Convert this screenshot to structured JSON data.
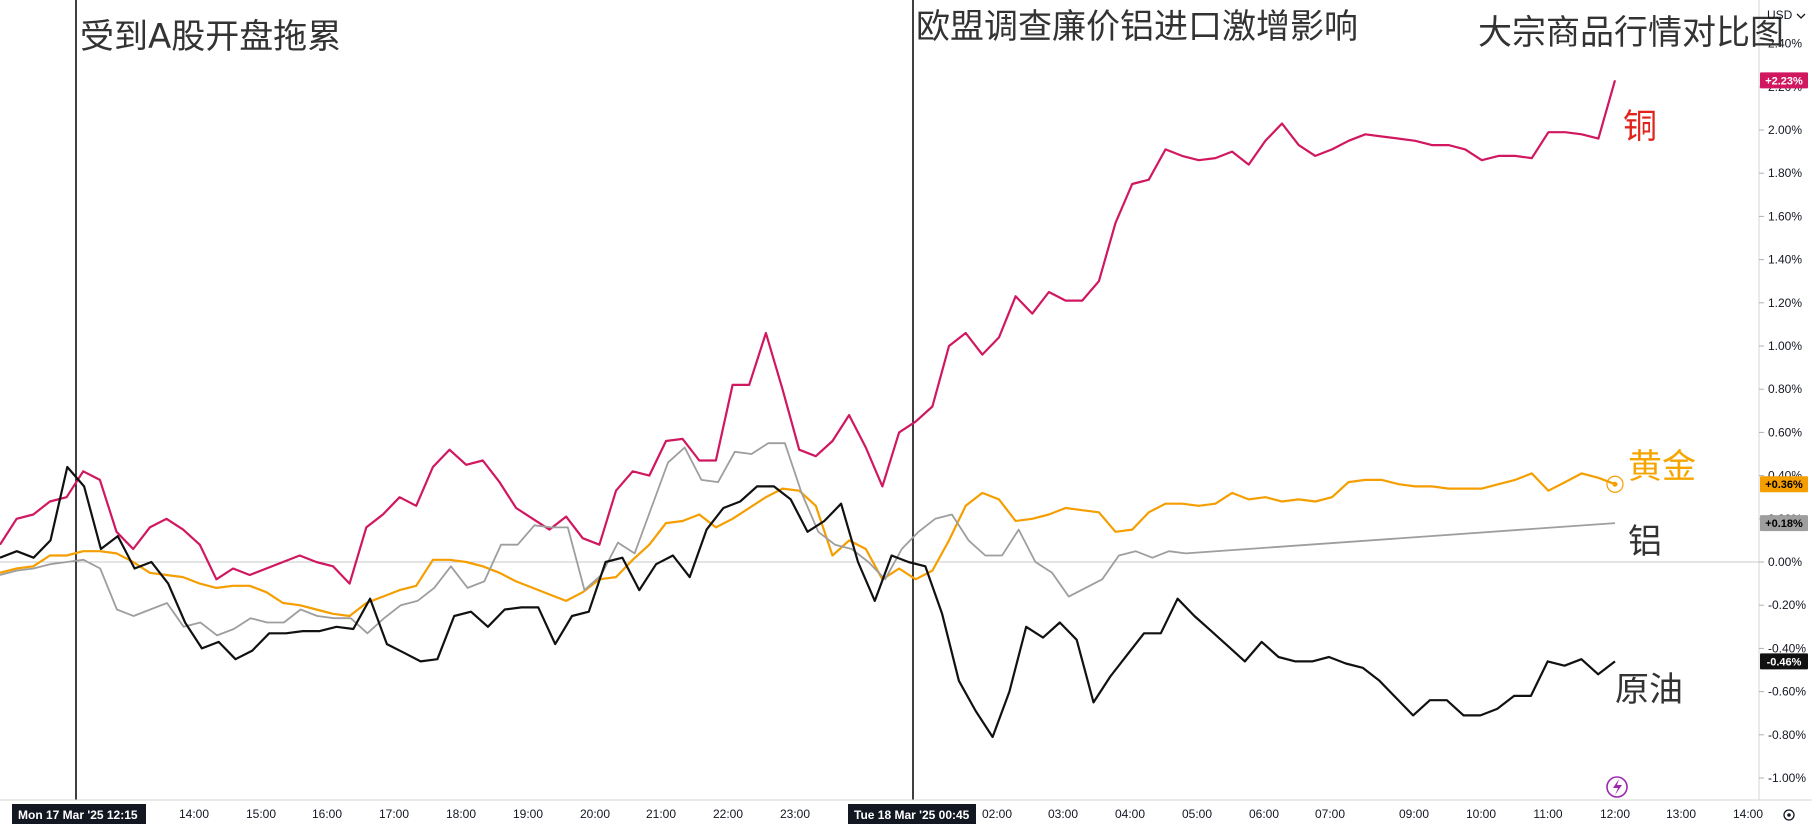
{
  "chart_data": {
    "type": "line",
    "title": "大宗商品行情对比图",
    "currency": "USD",
    "ylabel": "",
    "xlabel": "",
    "ylim": [
      -1.1,
      2.55
    ],
    "y_ticks": [
      "2.40%",
      "2.20%",
      "2.00%",
      "1.80%",
      "1.60%",
      "1.40%",
      "1.20%",
      "1.00%",
      "0.80%",
      "0.60%",
      "0.40%",
      "0.20%",
      "0.00%",
      "-0.20%",
      "-0.40%",
      "-0.60%",
      "-0.80%",
      "-1.00%"
    ],
    "x_ticks": [
      "14:00",
      "15:00",
      "16:00",
      "17:00",
      "18:00",
      "19:00",
      "20:00",
      "21:00",
      "22:00",
      "23:00",
      "02:00",
      "03:00",
      "04:00",
      "05:00",
      "06:00",
      "07:00",
      "09:00",
      "10:00",
      "11:00",
      "12:00",
      "13:00",
      "14:00"
    ],
    "date_labels": [
      {
        "text": "Mon 17 Mar '25   12:15"
      },
      {
        "text": "Tue 18 Mar '25   00:45"
      }
    ],
    "annotations": [
      "受到A股开盘拖累",
      "欧盟调查廉价铝进口激增影响"
    ],
    "grid": false,
    "series": [
      {
        "name": "铜",
        "color": "#d0175f",
        "badge": "+2.23%",
        "values": [
          0.08,
          0.2,
          0.22,
          0.28,
          0.3,
          0.42,
          0.38,
          0.14,
          0.06,
          0.16,
          0.2,
          0.15,
          0.08,
          -0.08,
          -0.03,
          -0.06,
          -0.03,
          0.0,
          0.03,
          0.0,
          -0.02,
          -0.1,
          0.16,
          0.22,
          0.3,
          0.26,
          0.44,
          0.52,
          0.45,
          0.47,
          0.37,
          0.25,
          0.2,
          0.15,
          0.21,
          0.11,
          0.08,
          0.33,
          0.42,
          0.4,
          0.56,
          0.57,
          0.47,
          0.47,
          0.82,
          0.82,
          1.06,
          0.8,
          0.52,
          0.49,
          0.56,
          0.68,
          0.53,
          0.35,
          0.6,
          0.65,
          0.72,
          1.0,
          1.06,
          0.96,
          1.04,
          1.23,
          1.15,
          1.25,
          1.21,
          1.21,
          1.3,
          1.57,
          1.75,
          1.77,
          1.91,
          1.88,
          1.86,
          1.87,
          1.9,
          1.84,
          1.95,
          2.03,
          1.93,
          1.88,
          1.91,
          1.95,
          1.98,
          1.97,
          1.96,
          1.95,
          1.93,
          1.93,
          1.91,
          1.86,
          1.88,
          1.88,
          1.87,
          1.99,
          1.99,
          1.98,
          1.96,
          2.23
        ]
      },
      {
        "name": "黄金",
        "color": "#f59e00",
        "badge": "+0.36%",
        "values": [
          -0.05,
          -0.03,
          -0.02,
          0.03,
          0.03,
          0.05,
          0.05,
          0.04,
          0.0,
          -0.05,
          -0.06,
          -0.07,
          -0.1,
          -0.12,
          -0.11,
          -0.11,
          -0.14,
          -0.19,
          -0.2,
          -0.22,
          -0.24,
          -0.25,
          -0.19,
          -0.16,
          -0.13,
          -0.11,
          0.01,
          0.01,
          0.0,
          -0.02,
          -0.05,
          -0.09,
          -0.12,
          -0.15,
          -0.18,
          -0.14,
          -0.08,
          -0.07,
          0.01,
          0.08,
          0.18,
          0.19,
          0.22,
          0.16,
          0.2,
          0.25,
          0.3,
          0.34,
          0.33,
          0.26,
          0.03,
          0.1,
          0.06,
          -0.08,
          -0.03,
          -0.08,
          -0.04,
          0.1,
          0.26,
          0.32,
          0.29,
          0.19,
          0.2,
          0.22,
          0.25,
          0.24,
          0.23,
          0.14,
          0.15,
          0.23,
          0.27,
          0.27,
          0.26,
          0.27,
          0.32,
          0.29,
          0.3,
          0.28,
          0.29,
          0.28,
          0.3,
          0.37,
          0.38,
          0.38,
          0.36,
          0.35,
          0.35,
          0.34,
          0.34,
          0.34,
          0.36,
          0.38,
          0.41,
          0.33,
          0.37,
          0.41,
          0.39,
          0.36
        ]
      },
      {
        "name": "铝",
        "color": "#9e9e9e",
        "badge": "+0.18%",
        "values": [
          -0.06,
          -0.04,
          -0.03,
          -0.01,
          0.0,
          0.01,
          -0.03,
          -0.22,
          -0.25,
          -0.22,
          -0.19,
          -0.3,
          -0.28,
          -0.34,
          -0.31,
          -0.26,
          -0.28,
          -0.28,
          -0.22,
          -0.25,
          -0.26,
          -0.26,
          -0.33,
          -0.26,
          -0.2,
          -0.18,
          -0.12,
          -0.02,
          -0.12,
          -0.09,
          0.08,
          0.08,
          0.17,
          0.16,
          0.16,
          -0.13,
          -0.06,
          0.09,
          0.04,
          0.25,
          0.46,
          0.53,
          0.38,
          0.37,
          0.51,
          0.5,
          0.55,
          0.55,
          0.32,
          0.14,
          0.08,
          0.06,
          0.0,
          -0.08,
          0.06,
          0.14,
          0.2,
          0.22,
          0.1,
          0.03,
          0.03,
          0.15,
          0.0,
          -0.05,
          -0.16,
          -0.12,
          -0.08,
          0.03,
          0.05,
          0.02,
          0.05,
          0.04,
          0.18
        ]
      },
      {
        "name": "原油",
        "color": "#111111",
        "badge": "-0.46%",
        "values": [
          0.02,
          0.05,
          0.02,
          0.1,
          0.44,
          0.35,
          0.06,
          0.12,
          -0.03,
          0.0,
          -0.1,
          -0.28,
          -0.4,
          -0.37,
          -0.45,
          -0.41,
          -0.33,
          -0.33,
          -0.32,
          -0.32,
          -0.3,
          -0.31,
          -0.17,
          -0.38,
          -0.42,
          -0.46,
          -0.45,
          -0.25,
          -0.23,
          -0.3,
          -0.22,
          -0.21,
          -0.21,
          -0.38,
          -0.25,
          -0.23,
          0.0,
          0.02,
          -0.13,
          -0.01,
          0.03,
          -0.07,
          0.15,
          0.25,
          0.28,
          0.35,
          0.35,
          0.29,
          0.14,
          0.19,
          0.27,
          0.0,
          -0.18,
          0.03,
          0.0,
          -0.02,
          -0.24,
          -0.55,
          -0.69,
          -0.81,
          -0.6,
          -0.3,
          -0.35,
          -0.28,
          -0.36,
          -0.65,
          -0.53,
          -0.43,
          -0.33,
          -0.33,
          -0.17,
          -0.25,
          -0.32,
          -0.39,
          -0.46,
          -0.37,
          -0.44,
          -0.46,
          -0.46,
          -0.44,
          -0.47,
          -0.49,
          -0.55,
          -0.63,
          -0.71,
          -0.64,
          -0.64,
          -0.71,
          -0.71,
          -0.68,
          -0.62,
          -0.62,
          -0.46,
          -0.48,
          -0.45,
          -0.52,
          -0.46
        ]
      }
    ]
  }
}
